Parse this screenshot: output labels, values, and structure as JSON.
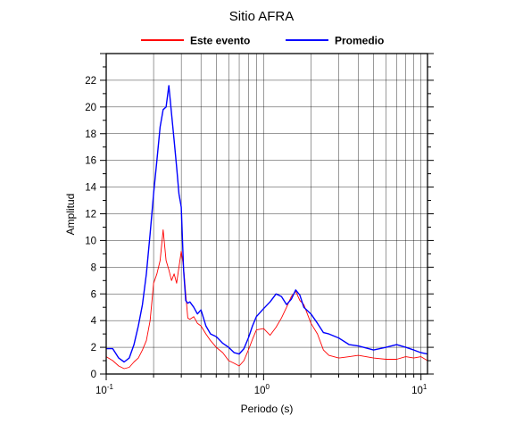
{
  "chart_data": {
    "type": "line",
    "title": "Sitio AFRA",
    "xlabel": "Periodo (s)",
    "ylabel": "Amplitud",
    "x_scale": "log",
    "xlim": [
      0.1,
      11
    ],
    "ylim": [
      0,
      24
    ],
    "x_ticks": [
      {
        "base": "10",
        "exp": "-1",
        "value": 0.1
      },
      {
        "base": "10",
        "exp": "0",
        "value": 1
      },
      {
        "base": "10",
        "exp": "1",
        "value": 10
      }
    ],
    "y_ticks": [
      0,
      2,
      4,
      6,
      8,
      10,
      12,
      14,
      16,
      18,
      20,
      22
    ],
    "grid": true,
    "legend_position": "top",
    "series": [
      {
        "name": "Este evento",
        "color": "#ff0000",
        "x": [
          0.1,
          0.11,
          0.12,
          0.13,
          0.14,
          0.15,
          0.16,
          0.17,
          0.18,
          0.19,
          0.2,
          0.21,
          0.22,
          0.23,
          0.24,
          0.25,
          0.26,
          0.27,
          0.28,
          0.29,
          0.3,
          0.31,
          0.32,
          0.33,
          0.34,
          0.36,
          0.38,
          0.4,
          0.43,
          0.46,
          0.5,
          0.55,
          0.6,
          0.65,
          0.7,
          0.75,
          0.8,
          0.85,
          0.9,
          1.0,
          1.1,
          1.2,
          1.3,
          1.4,
          1.5,
          1.6,
          1.7,
          1.8,
          2.0,
          2.2,
          2.4,
          2.6,
          3.0,
          3.5,
          4.0,
          5.0,
          6.0,
          7.0,
          8.0,
          9.0,
          10.0,
          11.0
        ],
        "y": [
          1.3,
          1.0,
          0.6,
          0.4,
          0.5,
          0.9,
          1.2,
          1.8,
          2.5,
          4.0,
          6.8,
          7.5,
          8.5,
          10.8,
          8.5,
          7.8,
          7.0,
          7.5,
          6.8,
          8.0,
          9.2,
          8.0,
          6.0,
          4.2,
          4.1,
          4.3,
          3.8,
          3.6,
          3.0,
          2.5,
          2.0,
          1.6,
          1.0,
          0.8,
          0.6,
          1.0,
          1.8,
          2.6,
          3.3,
          3.4,
          2.9,
          3.5,
          4.2,
          5.0,
          5.8,
          6.2,
          5.5,
          5.2,
          3.8,
          3.0,
          1.8,
          1.4,
          1.2,
          1.3,
          1.4,
          1.2,
          1.1,
          1.1,
          1.3,
          1.2,
          1.3,
          1.0
        ]
      },
      {
        "name": "Promedio",
        "color": "#0000ff",
        "x": [
          0.1,
          0.11,
          0.12,
          0.13,
          0.14,
          0.15,
          0.16,
          0.17,
          0.18,
          0.19,
          0.2,
          0.21,
          0.22,
          0.23,
          0.24,
          0.25,
          0.26,
          0.27,
          0.28,
          0.29,
          0.3,
          0.31,
          0.32,
          0.33,
          0.34,
          0.36,
          0.38,
          0.4,
          0.43,
          0.46,
          0.5,
          0.55,
          0.6,
          0.65,
          0.7,
          0.75,
          0.8,
          0.85,
          0.9,
          1.0,
          1.1,
          1.2,
          1.3,
          1.4,
          1.5,
          1.6,
          1.7,
          1.8,
          2.0,
          2.2,
          2.4,
          2.6,
          3.0,
          3.5,
          4.0,
          5.0,
          6.0,
          7.0,
          8.0,
          9.0,
          10.0,
          11.0
        ],
        "y": [
          1.9,
          1.9,
          1.2,
          0.9,
          1.2,
          2.2,
          3.6,
          5.2,
          7.5,
          10.5,
          13.5,
          16.0,
          18.5,
          19.8,
          20.0,
          21.6,
          19.5,
          17.5,
          15.5,
          13.5,
          12.5,
          7.8,
          5.5,
          5.3,
          5.4,
          5.0,
          4.5,
          4.8,
          3.6,
          3.0,
          2.8,
          2.3,
          2.0,
          1.6,
          1.5,
          1.9,
          2.7,
          3.6,
          4.3,
          4.9,
          5.4,
          6.0,
          5.8,
          5.2,
          5.6,
          6.3,
          5.9,
          5.0,
          4.5,
          3.8,
          3.1,
          3.0,
          2.7,
          2.2,
          2.1,
          1.8,
          2.0,
          2.2,
          2.0,
          1.8,
          1.6,
          1.5
        ]
      }
    ]
  }
}
